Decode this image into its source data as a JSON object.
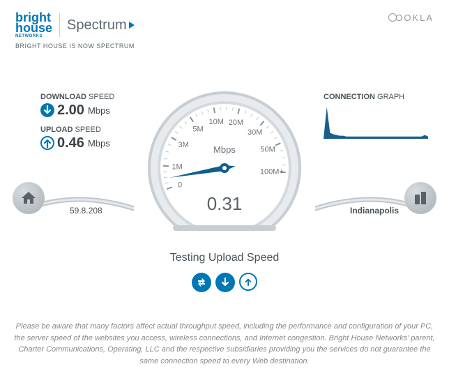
{
  "header": {
    "logo1_line1": "bright",
    "logo1_line2": "house",
    "logo1_sub": "NETWORKS",
    "logo2": "Spectrum",
    "tagline": "BRIGHT HOUSE IS NOW SPECTRUM",
    "provider": "OOKLA"
  },
  "speeds": {
    "download_label_bold": "DOWNLOAD",
    "download_label_rest": " SPEED",
    "download_value": "2.00",
    "download_unit": "Mbps",
    "upload_label_bold": "UPLOAD",
    "upload_label_rest": " SPEED",
    "upload_value": "0.46",
    "upload_unit": "Mbps"
  },
  "gauge": {
    "unit": "Mbps",
    "current": "0.31",
    "ticks": [
      "0",
      "1M",
      "3M",
      "5M",
      "10M",
      "20M",
      "30M",
      "50M",
      "100M+"
    ],
    "tick_angles": [
      -110,
      -88,
      -60,
      -34,
      -10,
      14,
      40,
      66,
      94
    ],
    "needle_angle": -100,
    "face_color": "#ffffff",
    "rim_outer": "#c7cdd2",
    "rim_inner": "#e8ebee",
    "needle_color": "#125e8a",
    "tick_color": "#8a9298"
  },
  "connection_graph": {
    "label_bold": "CONNECTION",
    "label_rest": " GRAPH",
    "color": "#1a5f8a",
    "points": [
      0,
      42,
      8,
      6,
      5,
      4,
      4,
      3,
      3,
      3,
      3,
      3,
      3,
      3,
      3,
      3,
      3,
      3,
      3,
      3,
      3,
      3,
      3,
      3,
      3,
      3,
      3,
      3,
      3,
      3,
      3,
      5,
      3
    ],
    "height": 48
  },
  "endpoints": {
    "ip": "59.8.208",
    "server": "Indianapolis"
  },
  "status": "Testing Upload Speed",
  "colors": {
    "accent": "#0077b5",
    "text": "#4a5358"
  },
  "disclaimer": "Please be aware that many factors affect actual throughput speed, including the performance and configuration of your PC, the server speed of the websites you access, wireless connections, and Internet congestion. Bright House Networks' parent, Charter Communications, Operating, LLC and the respective subsidiaries providing you the services do not guarantee the same connection speed to every Web destination."
}
